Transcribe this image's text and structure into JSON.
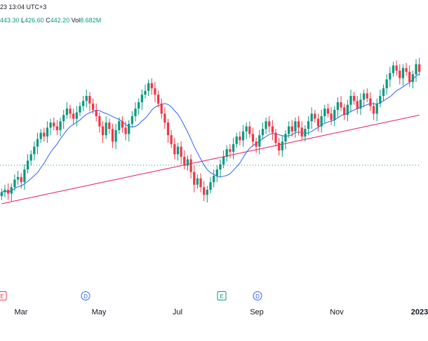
{
  "header": {
    "line1": "23 13:04 UTC+3",
    "h_value": "443.30",
    "l_label": "L",
    "l_value": "426.60",
    "c_label": "C",
    "c_value": "442.20",
    "vol_label": "Vol",
    "vol_value": "8.682M"
  },
  "chart_data": {
    "type": "candlestick",
    "x_ticks": [
      {
        "label": "Mar",
        "bold": false
      },
      {
        "label": "May",
        "bold": false
      },
      {
        "label": "Jul",
        "bold": false
      },
      {
        "label": "Sep",
        "bold": false
      },
      {
        "label": "Nov",
        "bold": false
      },
      {
        "label": "2023",
        "bold": true
      }
    ],
    "events": [
      {
        "label": "E",
        "kind": "e-red"
      },
      {
        "label": "D",
        "kind": "d"
      },
      {
        "label": "E",
        "kind": "e"
      },
      {
        "label": "D",
        "kind": "d"
      }
    ],
    "price_reference_line": {
      "style": "dotted",
      "color": "#089981"
    },
    "candles_close": [
      300,
      302,
      299,
      304,
      310,
      312,
      308,
      318,
      325,
      330,
      336,
      342,
      347,
      344,
      351,
      355,
      352,
      349,
      356,
      361,
      366,
      362,
      358,
      363,
      368,
      372,
      376,
      370,
      365,
      360,
      352,
      345,
      355,
      350,
      340,
      349,
      356,
      351,
      346,
      354,
      360,
      366,
      371,
      377,
      380,
      386,
      382,
      377,
      370,
      362,
      355,
      345,
      338,
      330,
      336,
      328,
      321,
      326,
      316,
      306,
      311,
      304,
      298,
      302,
      308,
      313,
      318,
      322,
      328,
      334,
      332,
      338,
      344,
      341,
      348,
      352,
      346,
      340,
      336,
      345,
      350,
      356,
      352,
      347,
      339,
      333,
      340,
      346,
      352,
      348,
      356,
      351,
      344,
      350,
      356,
      362,
      358,
      352,
      360,
      366,
      362,
      357,
      365,
      371,
      367,
      361,
      369,
      376,
      372,
      366,
      373,
      378,
      374,
      368,
      362,
      370,
      376,
      382,
      389,
      394,
      400,
      396,
      390,
      398,
      395,
      387,
      393,
      401,
      395
    ],
    "ma_short_color": "#2962ff",
    "ma_long_color": "#e91e63",
    "up_color": "#089981",
    "down_color": "#f23645"
  }
}
